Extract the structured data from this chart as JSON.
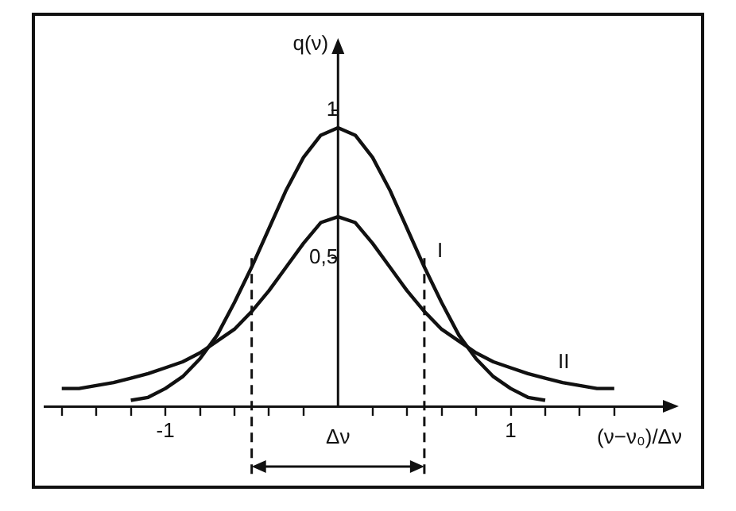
{
  "chart_data": {
    "type": "line",
    "xlabel": "(ν−ν₀)/Δν",
    "ylabel": "q(ν)",
    "xlim": [
      -1.7,
      1.9
    ],
    "ylim": [
      0,
      1.2
    ],
    "xticks": [
      {
        "value": -1.6,
        "label": null
      },
      {
        "value": -1.4,
        "label": null
      },
      {
        "value": -1.2,
        "label": null
      },
      -1,
      {
        "value": -0.8,
        "label": null
      },
      {
        "value": -0.6,
        "label": null
      },
      {
        "value": -0.4,
        "label": null
      },
      {
        "value": -0.2,
        "label": null
      },
      {
        "value": 0.2,
        "label": null
      },
      {
        "value": 0.4,
        "label": null
      },
      {
        "value": 0.6,
        "label": null
      },
      {
        "value": 0.8,
        "label": null
      },
      1,
      {
        "value": 1.2,
        "label": null
      },
      {
        "value": 1.4,
        "label": null
      },
      {
        "value": 1.6,
        "label": null
      }
    ],
    "yticks": [
      {
        "value": 0.5,
        "label": "0,5"
      },
      1
    ],
    "series": [
      {
        "color": "#111111",
        "x": [
          -1.2,
          -1.1,
          -1.0,
          -0.9,
          -0.8,
          -0.7,
          -0.6,
          -0.5,
          -0.4,
          -0.3,
          -0.2,
          -0.1,
          0,
          0.1,
          0.2,
          0.3,
          0.4,
          0.5,
          0.6,
          0.7,
          0.8,
          0.9,
          1.0,
          1.1,
          1.2
        ],
        "values": [
          0.02,
          0.03,
          0.06,
          0.1,
          0.16,
          0.24,
          0.35,
          0.47,
          0.6,
          0.73,
          0.84,
          0.915,
          0.94,
          0.915,
          0.84,
          0.73,
          0.6,
          0.47,
          0.35,
          0.24,
          0.16,
          0.1,
          0.06,
          0.03,
          0.02
        ]
      },
      {
        "color": "#111111",
        "x": [
          -1.6,
          -1.5,
          -1.4,
          -1.3,
          -1.2,
          -1.1,
          -1.0,
          -0.9,
          -0.8,
          -0.7,
          -0.6,
          -0.5,
          -0.4,
          -0.3,
          -0.2,
          -0.1,
          0,
          0.1,
          0.2,
          0.3,
          0.4,
          0.5,
          0.6,
          0.7,
          0.8,
          0.9,
          1.0,
          1.1,
          1.2,
          1.3,
          1.4,
          1.5,
          1.6
        ],
        "values": [
          0.06,
          0.06,
          0.07,
          0.08,
          0.095,
          0.11,
          0.13,
          0.15,
          0.18,
          0.22,
          0.26,
          0.32,
          0.39,
          0.47,
          0.55,
          0.62,
          0.64,
          0.62,
          0.55,
          0.47,
          0.39,
          0.32,
          0.26,
          0.22,
          0.18,
          0.15,
          0.13,
          0.11,
          0.095,
          0.08,
          0.07,
          0.06,
          0.06
        ]
      }
    ],
    "ref_lines": [
      {
        "axis": "x",
        "value": -0.5,
        "line_style": "dashed",
        "color": "#111111"
      },
      {
        "axis": "x",
        "value": 0.5,
        "line_style": "dashed",
        "color": "#111111"
      }
    ],
    "annotations": [
      "I",
      "II",
      "Δν"
    ],
    "legend": false,
    "grid": false,
    "marker": "none",
    "line_style": "solid"
  }
}
